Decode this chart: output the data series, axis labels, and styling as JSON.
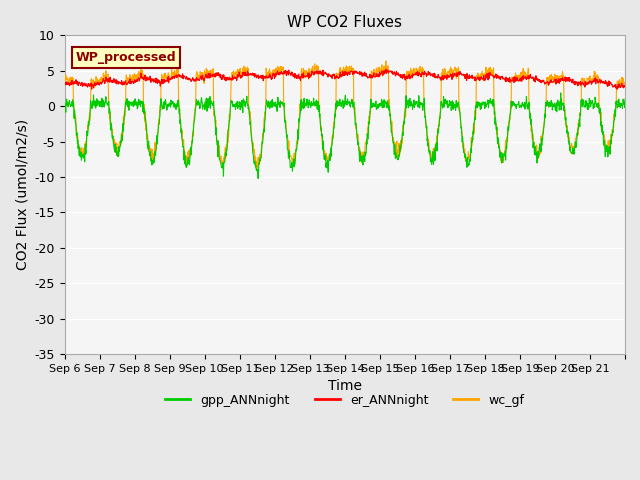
{
  "title": "WP CO2 Fluxes",
  "xlabel": "Time",
  "ylabel_display": "CO2 Flux (umol/m2/s)",
  "ylim": [
    -35,
    10
  ],
  "yticks": [
    -35,
    -30,
    -25,
    -20,
    -15,
    -10,
    -5,
    0,
    5,
    10
  ],
  "x_labels": [
    "Sep 6",
    "Sep 7",
    "Sep 8",
    "Sep 9",
    "Sep 10",
    "Sep 11",
    "Sep 12",
    "Sep 13",
    "Sep 14",
    "Sep 15",
    "Sep 16",
    "Sep 17",
    "Sep 18",
    "Sep 19",
    "Sep 20",
    "Sep 21",
    ""
  ],
  "annotation_text": "WP_processed",
  "annotation_color": "#8B0000",
  "annotation_bg": "#FFFFC0",
  "annotation_border": "#8B0000",
  "gpp_color": "#00CC00",
  "er_color": "#FF0000",
  "wc_color": "#FFA500",
  "legend_labels": [
    "gpp_ANNnight",
    "er_ANNnight",
    "wc_gf"
  ],
  "background_color": "#E8E8E8",
  "plot_bg": "#F5F5F5",
  "grid_color": "#FFFFFF",
  "n_days": 16,
  "n_points_per_day": 96
}
